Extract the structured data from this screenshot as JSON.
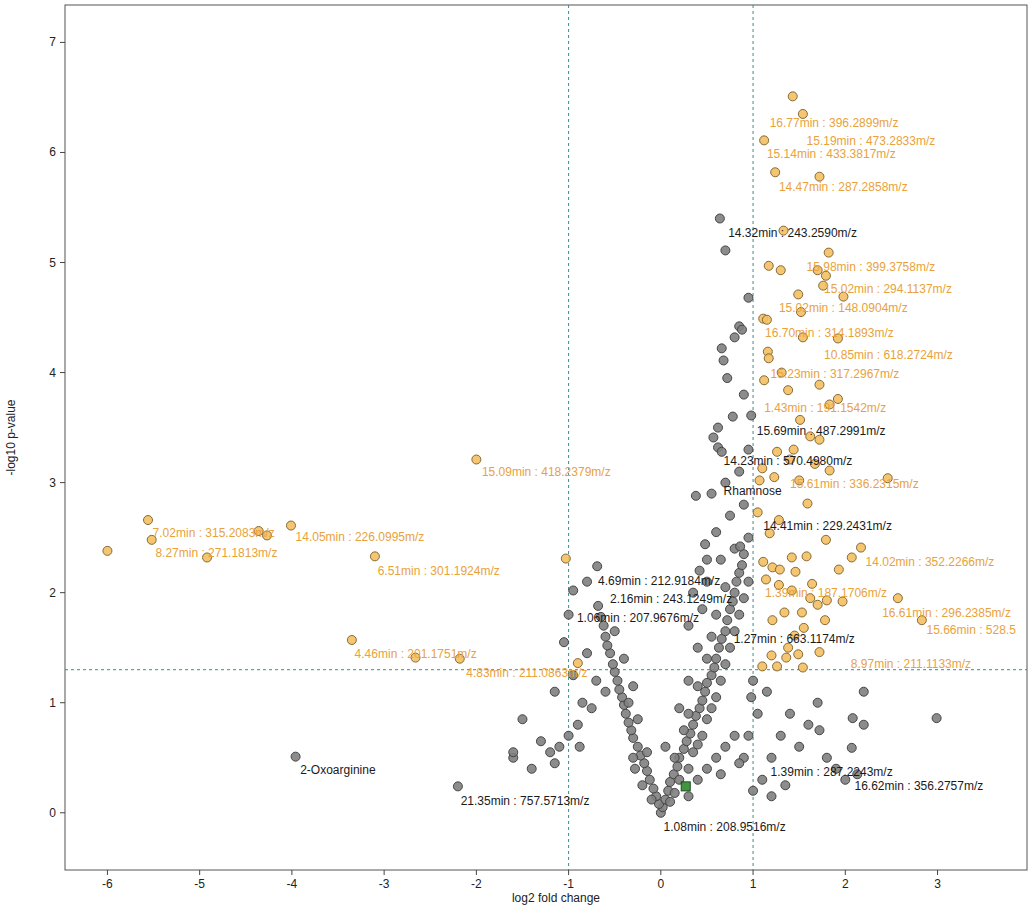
{
  "chart_data": {
    "type": "scatter",
    "x_label": "log2 fold change",
    "y_label": "-log10 p-value",
    "xlim": [
      -6.46,
      3.97
    ],
    "ylim": [
      -0.52,
      7.34
    ],
    "xticks": [
      -6,
      -5,
      -4,
      -3,
      -2,
      -1,
      0,
      1,
      2,
      3
    ],
    "yticks": [
      0,
      1,
      2,
      3,
      4,
      5,
      6,
      7
    ],
    "grid": false,
    "reference_lines": {
      "x": [
        -1,
        1
      ],
      "y": [
        1.3
      ]
    },
    "series": [
      {
        "color": "#7f7f7f",
        "marker": "circle",
        "x": [
          0,
          0.02,
          -0.02,
          0.05,
          -0.05,
          0.08,
          -0.08,
          0.1,
          -0.12,
          0.14,
          -0.15,
          0.18,
          -0.18,
          0.2,
          -0.22,
          0.25,
          -0.25,
          0.28,
          -0.3,
          0.32,
          -0.32,
          0.35,
          -0.35,
          0.38,
          -0.38,
          0.42,
          -0.4,
          0.45,
          -0.42,
          0.48,
          -0.45,
          0.5,
          -0.47,
          0.55,
          -0.5,
          0.58,
          -0.52,
          0.6,
          -0.55,
          0.63,
          -0.58,
          0.66,
          -0.6,
          0.7,
          -0.62,
          0.72,
          -0.65,
          0.75,
          -0.68,
          0.78,
          0.8,
          0.82,
          0.85,
          0.88,
          0.9,
          0.1,
          0.15,
          -0.1,
          0.2,
          0.3,
          -0.2,
          -0.28,
          0.35,
          0.4,
          0.15,
          -0.15,
          0.05,
          0.25,
          0.45,
          -0.3,
          0.3,
          0.5,
          0.55,
          0.2,
          -0.25,
          -0.35,
          0.4,
          0.6,
          0.65,
          0.3,
          -0.3,
          0.7,
          0.5,
          0.4,
          -0.4,
          0.75,
          0.55,
          0.8,
          0.6,
          0.85,
          0.45,
          -0.5,
          0.9,
          0.7,
          0.5,
          0.95,
          0.65,
          0.8,
          0.95,
          0.6,
          0.75,
          0.9,
          0.55,
          0.7,
          0.85,
          0.95,
          0.62,
          0.78,
          0.9,
          0.72,
          -0.7,
          -0.8,
          -0.85,
          -0.9,
          -1.0,
          -1.1,
          -1.2,
          -0.75,
          -0.95,
          -1.05,
          -1.15,
          -0.6,
          -1.6,
          -1.6,
          -1.3,
          -1.4,
          -0.95,
          -0.69,
          -1.0,
          -0.8,
          -1.15,
          -0.88,
          -1.5,
          1.0,
          1.1,
          1.2,
          1.3,
          1.05,
          1.15,
          1.4,
          1.5,
          1.6,
          1.8,
          1.9,
          2.0,
          1.2,
          1.35,
          0.9,
          0.95,
          1.0,
          0.98,
          1.7,
          2.2,
          2.2,
          2.99,
          2.07,
          2.13,
          2.08,
          1.72,
          0.3,
          0.4,
          0.5,
          0.6,
          0.7,
          0.8,
          0.65,
          0.85,
          0.64,
          0.7,
          0.95,
          0.85,
          0.88,
          0.8,
          0.66,
          0.68,
          0.98,
          0.57,
          0.62,
          0.38,
          0.66,
          0.86,
          0.48,
          0.5,
          0.42,
          0.35,
          0.3,
          -3.96,
          -2.2
        ],
        "values": [
          0,
          0.05,
          0.08,
          0.12,
          0.15,
          0.2,
          0.22,
          0.28,
          0.3,
          0.35,
          0.38,
          0.42,
          0.45,
          0.5,
          0.52,
          0.58,
          0.6,
          0.65,
          0.68,
          0.72,
          0.75,
          0.8,
          0.82,
          0.88,
          0.9,
          0.95,
          0.98,
          1.02,
          1.05,
          1.1,
          1.12,
          1.18,
          1.2,
          1.25,
          1.28,
          1.32,
          1.35,
          1.4,
          1.45,
          1.5,
          1.52,
          1.58,
          1.6,
          1.65,
          1.7,
          1.75,
          1.78,
          1.85,
          1.88,
          1.92,
          2.0,
          2.1,
          2.18,
          2.25,
          2.35,
          0.1,
          0.18,
          0.12,
          0.3,
          0.4,
          0.25,
          0.4,
          0.55,
          0.62,
          0.5,
          0.55,
          0.6,
          0.75,
          0.7,
          0.5,
          0.9,
          0.85,
          0.95,
          0.95,
          0.85,
          1.0,
          1.15,
          1.05,
          1.2,
          1.2,
          1.15,
          1.35,
          1.4,
          1.5,
          1.4,
          1.5,
          1.6,
          1.65,
          1.8,
          1.8,
          1.85,
          1.65,
          1.95,
          2.05,
          2.1,
          2.1,
          2.3,
          2.4,
          2.5,
          2.55,
          2.7,
          2.8,
          2.9,
          3.0,
          3.1,
          3.3,
          3.5,
          3.6,
          3.8,
          3.95,
          1.2,
          1.45,
          1.0,
          0.8,
          0.7,
          0.6,
          0.55,
          0.95,
          1.25,
          1.55,
          1.1,
          1.1,
          0.5,
          0.55,
          0.65,
          0.4,
          2.02,
          2.24,
          1.8,
          2.1,
          0.45,
          0.6,
          0.85,
          0.2,
          0.3,
          0.5,
          0.7,
          0.9,
          1.1,
          0.9,
          0.6,
          0.8,
          0.5,
          0.4,
          0.3,
          0.15,
          0.25,
          0.5,
          0.7,
          1.2,
          1.05,
          1.0,
          0.8,
          1.1,
          0.86,
          0.59,
          0.35,
          0.86,
          0.75,
          0.15,
          0.3,
          0.4,
          0.5,
          0.6,
          0.7,
          0.35,
          0.45,
          5.4,
          5.11,
          4.68,
          4.42,
          4.39,
          4.32,
          4.22,
          4.11,
          3.61,
          3.41,
          3.32,
          2.88,
          3.28,
          2.42,
          2.44,
          2.3,
          2.2,
          2.0,
          1.7,
          0.51,
          0.24
        ]
      },
      {
        "color": "#f4c063",
        "marker": "circle",
        "x": [
          1.43,
          1.54,
          1.12,
          1.24,
          1.72,
          1.33,
          1.82,
          1.17,
          1.3,
          1.7,
          1.79,
          1.76,
          1.98,
          1.49,
          1.11,
          1.15,
          1.52,
          1.16,
          1.17,
          1.54,
          1.92,
          1.31,
          1.12,
          1.72,
          1.38,
          1.83,
          1.92,
          1.51,
          1.62,
          1.72,
          1.44,
          1.26,
          1.4,
          1.1,
          1.23,
          1.67,
          1.83,
          1.07,
          1.5,
          2.46,
          1.59,
          1.05,
          1.28,
          1.18,
          1.79,
          1.58,
          1.42,
          1.11,
          2.07,
          2.17,
          1.21,
          1.29,
          1.14,
          1.46,
          1.64,
          1.93,
          1.28,
          1.42,
          1.62,
          1.7,
          1.8,
          1.34,
          1.53,
          1.97,
          1.21,
          1.78,
          1.55,
          1.45,
          1.38,
          1.49,
          1.36,
          1.72,
          1.2,
          1.1,
          1.26,
          2.57,
          2.83,
          1.54,
          -6.0,
          -5.56,
          -5.52,
          -4.92,
          -4.36,
          -4.01,
          -4.27,
          -3.1,
          -2.0,
          -1.03,
          -3.35,
          -2.66,
          -2.18,
          -0.9
        ],
        "values": [
          6.51,
          6.35,
          6.11,
          5.82,
          5.78,
          5.29,
          5.09,
          4.97,
          4.93,
          4.93,
          4.88,
          4.79,
          4.69,
          4.71,
          4.49,
          4.48,
          4.55,
          4.19,
          4.13,
          4.32,
          4.31,
          4.0,
          3.93,
          3.89,
          3.84,
          3.71,
          3.76,
          3.57,
          3.42,
          3.39,
          3.3,
          3.28,
          3.21,
          3.13,
          3.05,
          3.17,
          3.11,
          3.02,
          3.02,
          3.04,
          2.81,
          2.73,
          2.66,
          2.54,
          2.48,
          2.33,
          2.32,
          2.28,
          2.32,
          2.41,
          2.23,
          2.21,
          2.12,
          2.19,
          2.08,
          2.21,
          2.07,
          2.02,
          1.95,
          1.89,
          1.93,
          1.82,
          1.82,
          1.92,
          1.75,
          1.75,
          1.68,
          1.61,
          1.5,
          1.44,
          1.41,
          1.46,
          1.43,
          1.33,
          1.33,
          1.95,
          1.75,
          1.32,
          2.38,
          2.66,
          2.48,
          2.32,
          2.56,
          2.61,
          2.52,
          2.33,
          3.21,
          2.31,
          1.57,
          1.41,
          1.4,
          1.36
        ]
      },
      {
        "color": "#2e8b2e",
        "marker": "square",
        "x": [
          0.27
        ],
        "values": [
          0.24
        ]
      }
    ],
    "annotations": [
      {
        "text": "16.77min : 396.2899m/z",
        "x": 1.18,
        "y": 6.23,
        "color": "#e9a23b"
      },
      {
        "text": "15.19min : 473.2833m/z",
        "x": 1.58,
        "y": 6.07,
        "color": "#e9a23b"
      },
      {
        "text": "15.14min : 433.3817m/z",
        "x": 1.15,
        "y": 5.95,
        "color": "#e9a23b"
      },
      {
        "text": "14.47min : 287.2858m/z",
        "x": 1.28,
        "y": 5.65,
        "color": "#e9a23b"
      },
      {
        "text": "14.32min : 243.2590m/z",
        "x": 0.73,
        "y": 5.23,
        "color": "#1a1a1a"
      },
      {
        "text": "15.98min : 399.3758m/z",
        "x": 1.58,
        "y": 4.92,
        "color": "#e9a23b"
      },
      {
        "text": "15.02min : 294.1137m/z",
        "x": 1.77,
        "y": 4.72,
        "color": "#e9a23b"
      },
      {
        "text": "15.02min : 148.0904m/z",
        "x": 1.28,
        "y": 4.55,
        "color": "#e9a23b"
      },
      {
        "text": "16.70min : 314.1893m/z",
        "x": 1.13,
        "y": 4.32,
        "color": "#e9a23b"
      },
      {
        "text": "10.85min : 618.2724m/z",
        "x": 1.77,
        "y": 4.12,
        "color": "#e9a23b"
      },
      {
        "text": "15.23min : 317.2967m/z",
        "x": 1.19,
        "y": 3.95,
        "color": "#e9a23b"
      },
      {
        "text": "1.43min : 191.1542m/z",
        "x": 1.12,
        "y": 3.64,
        "color": "#e9a23b"
      },
      {
        "text": "15.69min : 487.2991m/z",
        "x": 1.04,
        "y": 3.43,
        "color": "#1a1a1a"
      },
      {
        "text": "14.23min : 570.4980m/z",
        "x": 0.68,
        "y": 3.16,
        "color": "#1a1a1a"
      },
      {
        "text": "15.61min : 336.2315m/z",
        "x": 1.4,
        "y": 2.95,
        "color": "#e9a23b"
      },
      {
        "text": "Rhamnose",
        "x": 0.68,
        "y": 2.89,
        "color": "#1a1a1a"
      },
      {
        "text": "14.41min : 229.2431m/z",
        "x": 1.11,
        "y": 2.57,
        "color": "#1a1a1a"
      },
      {
        "text": "14.02min : 352.2266m/z",
        "x": 2.22,
        "y": 2.24,
        "color": "#e9a23b"
      },
      {
        "text": "4.69min : 212.9184m/z",
        "x": -0.68,
        "y": 2.07,
        "color": "#1a1a1a"
      },
      {
        "text": "1.39min : 187.1706m/z",
        "x": 1.13,
        "y": 1.96,
        "color": "#e9a23b"
      },
      {
        "text": "2.16min : 243.1249m/z",
        "x": -0.55,
        "y": 1.91,
        "color": "#1a1a1a"
      },
      {
        "text": "16.61min : 296.2385m/z",
        "x": 2.4,
        "y": 1.78,
        "color": "#e9a23b"
      },
      {
        "text": "1.06min : 207.9676m/z",
        "x": -0.91,
        "y": 1.73,
        "color": "#1a1a1a"
      },
      {
        "text": "15.66min : 528.5",
        "x": 2.88,
        "y": 1.62,
        "color": "#e9a23b"
      },
      {
        "text": "1.27min : 663.1174m/z",
        "x": 0.79,
        "y": 1.54,
        "color": "#1a1a1a"
      },
      {
        "text": "8.97min : 211.1133m/z",
        "x": 2.06,
        "y": 1.32,
        "color": "#e9a23b"
      },
      {
        "text": "15.09min : 418.2379m/z",
        "x": -1.94,
        "y": 3.06,
        "color": "#e9a23b"
      },
      {
        "text": "7.02min : 315.2083m/z",
        "x": -5.51,
        "y": 2.51,
        "color": "#e9a23b"
      },
      {
        "text": "14.05min : 226.0995m/z",
        "x": -3.96,
        "y": 2.47,
        "color": "#e9a23b"
      },
      {
        "text": "8.27min : 271.1813m/z",
        "x": -5.48,
        "y": 2.32,
        "color": "#e9a23b"
      },
      {
        "text": "6.51min : 301.1924m/z",
        "x": -3.07,
        "y": 2.16,
        "color": "#e9a23b"
      },
      {
        "text": "4.46min : 201.1751m/z",
        "x": -3.32,
        "y": 1.41,
        "color": "#e9a23b"
      },
      {
        "text": "4.83min : 211.0863m/z",
        "x": -2.11,
        "y": 1.23,
        "color": "#e9a23b"
      },
      {
        "text": "1.39min : 287.2243m/z",
        "x": 1.19,
        "y": 0.33,
        "color": "#1a1a1a"
      },
      {
        "text": "16.62min : 356.2757m/z",
        "x": 2.1,
        "y": 0.21,
        "color": "#1a1a1a"
      },
      {
        "text": "2-Oxoarginine",
        "x": -3.91,
        "y": 0.35,
        "color": "#1a1a1a"
      },
      {
        "text": "21.35min : 757.5713m/z",
        "x": -2.17,
        "y": 0.07,
        "color": "#1a1a1a"
      },
      {
        "text": "1.08min : 208.9516m/z",
        "x": 0.03,
        "y": -0.17,
        "color": "#1a1a1a"
      }
    ]
  }
}
